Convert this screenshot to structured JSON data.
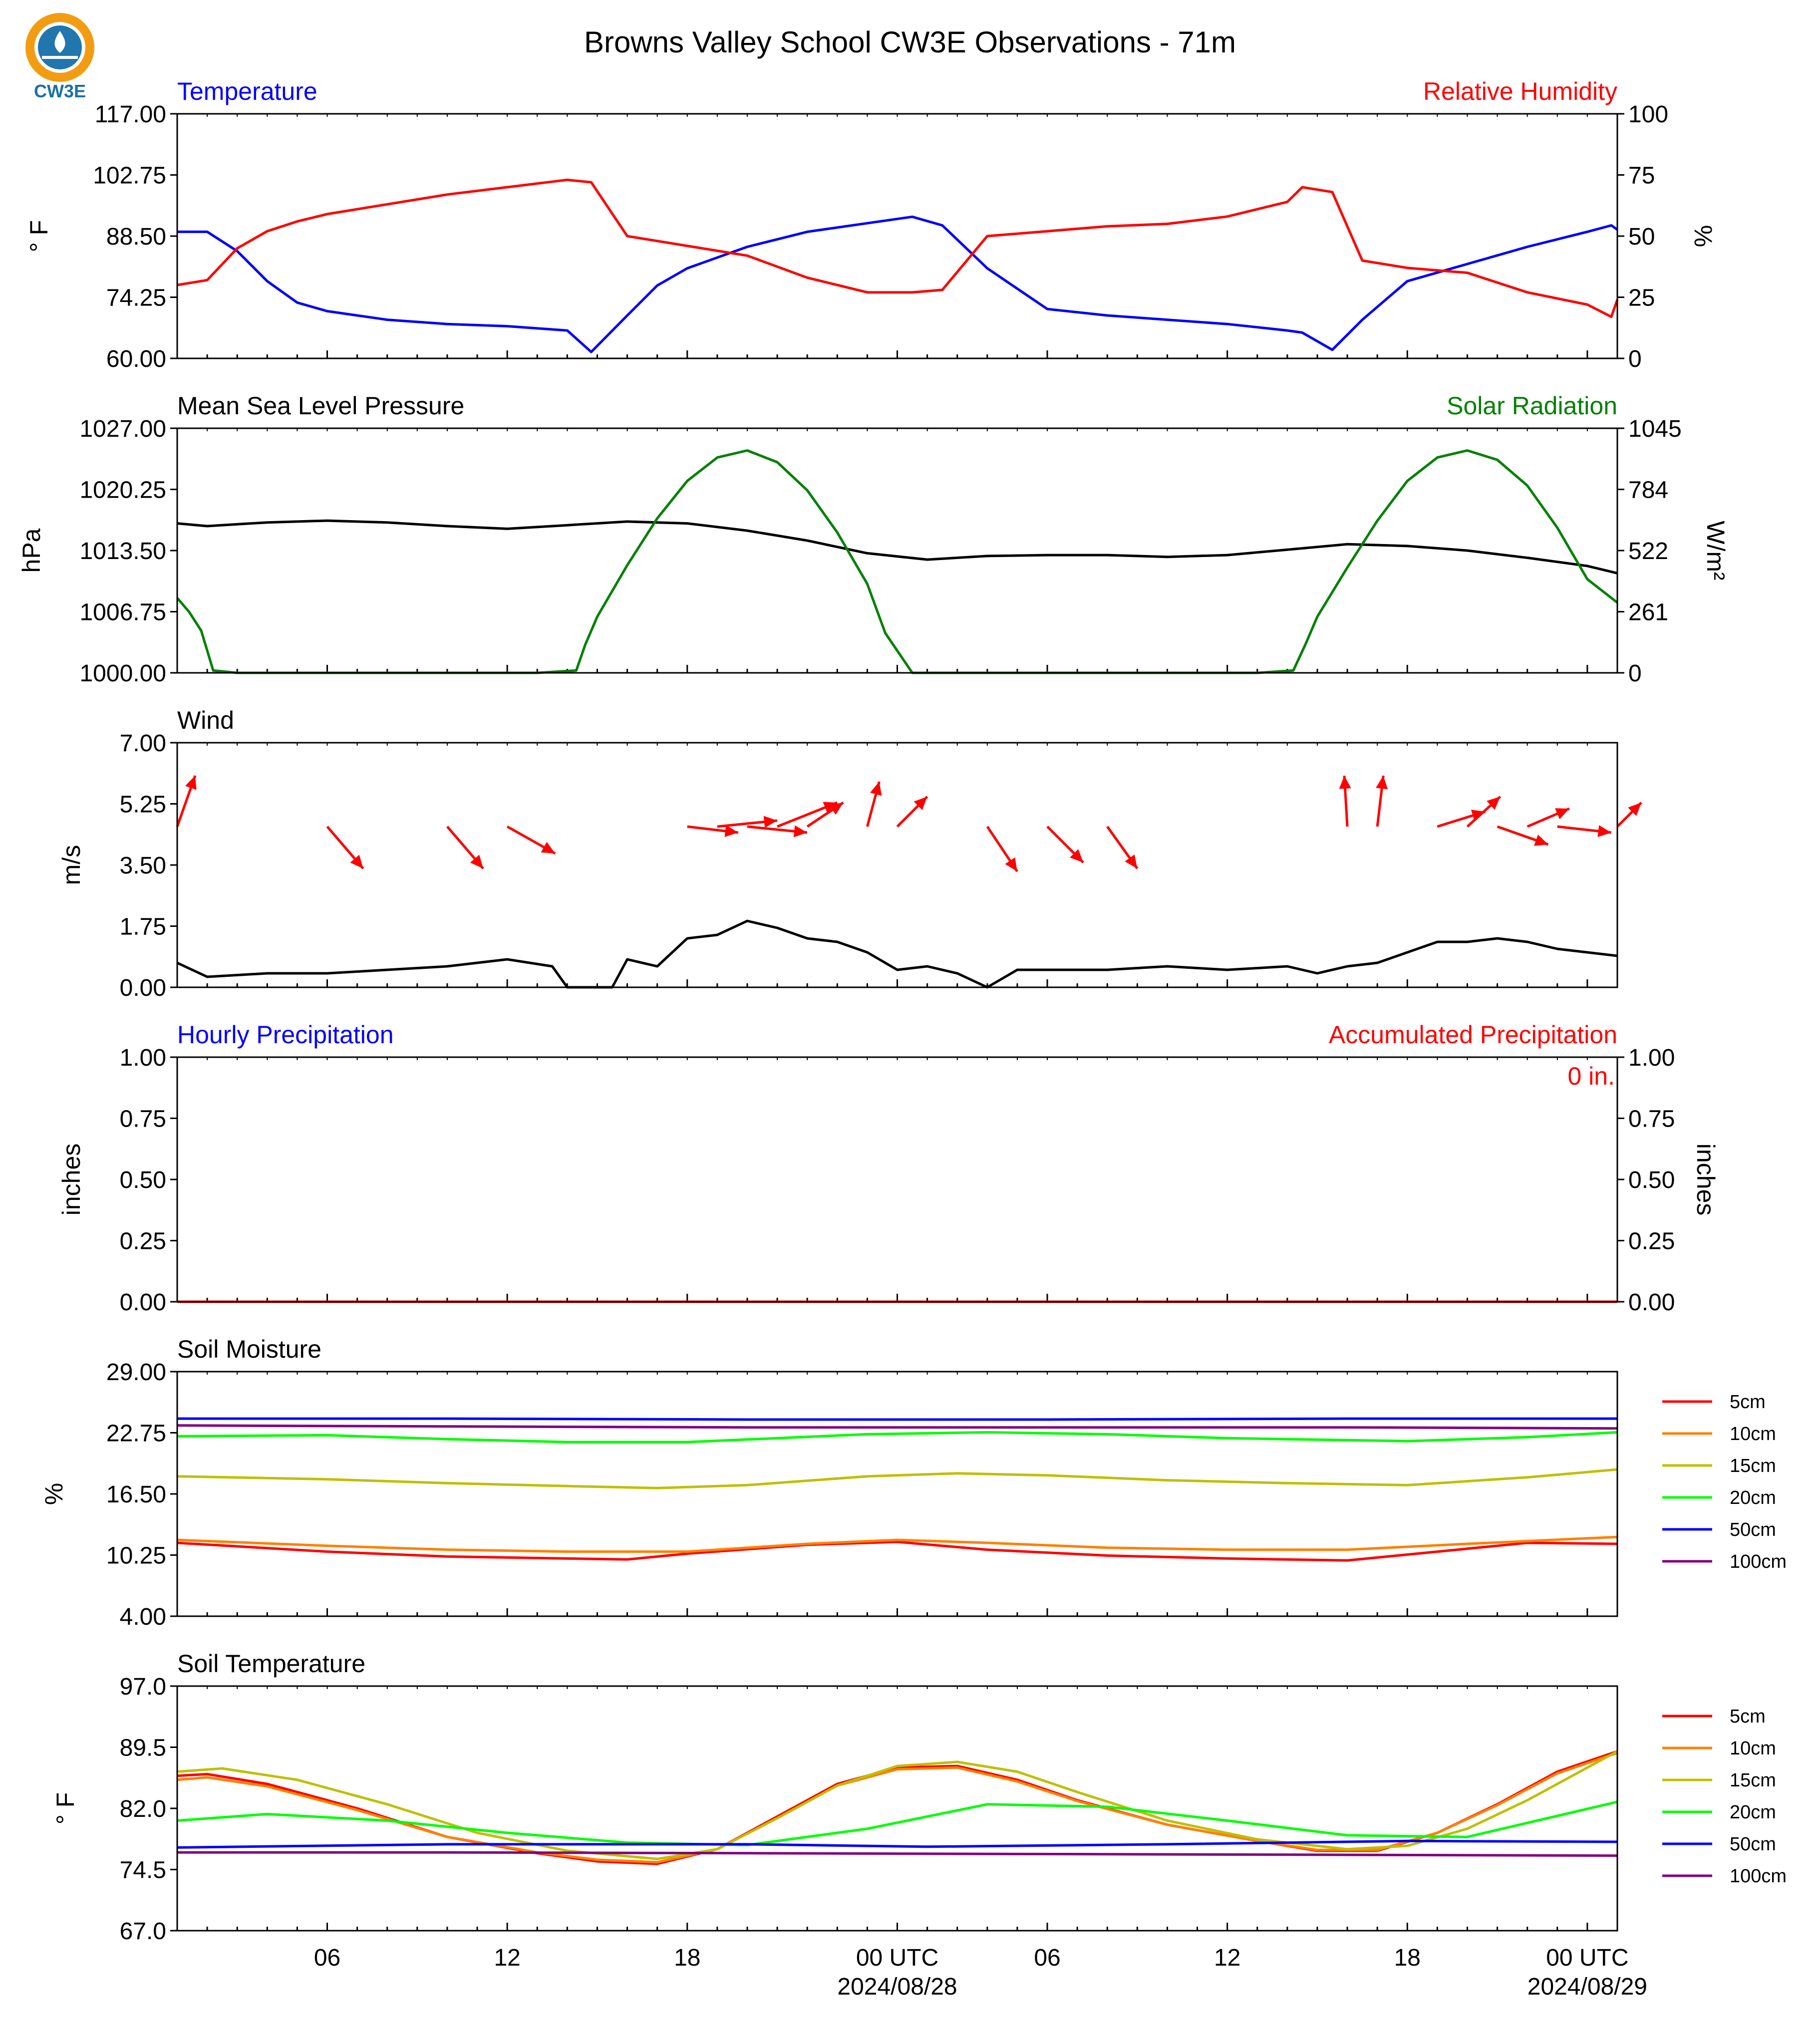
{
  "figure_title": "Browns Valley School CW3E Observations - 71m",
  "logo": {
    "text": "CW3E",
    "colors": {
      "ring": "#f39c12",
      "water": "#2176ae"
    }
  },
  "time_axis": {
    "ticks": [
      "06",
      "12",
      "18",
      "00 UTC",
      "06",
      "12",
      "18",
      "00 UTC"
    ],
    "dates": [
      "2024/08/28",
      "2024/08/29"
    ],
    "range_hours": [
      1,
      49
    ]
  },
  "colors": {
    "temperature": "#0000ff",
    "humidity": "#ff0000",
    "pressure": "#000000",
    "solar": "#008000",
    "wind": "#000000",
    "wind_arrows": "#ff0000",
    "hourly_precip": "#0000ff",
    "accum_precip": "#ff0000",
    "depths": {
      "5cm": "#ff0000",
      "10cm": "#ff8000",
      "15cm": "#bfbf00",
      "20cm": "#00ff00",
      "50cm": "#0000ff",
      "100cm": "#800080"
    }
  },
  "chart_data": [
    {
      "type": "line",
      "title_left": "Temperature",
      "title_right": "Relative Humidity",
      "ylabel_left": "° F",
      "ylabel_right": "%",
      "ylim_left": [
        60,
        117
      ],
      "ylim_right": [
        0,
        100
      ],
      "yticks_left": [
        "117.00",
        "102.75",
        "88.50",
        "74.25",
        "60.00"
      ],
      "yticks_right": [
        "100",
        "75",
        "50",
        "25",
        "0"
      ],
      "series": [
        {
          "name": "Temperature",
          "axis": "left",
          "x": [
            1,
            2,
            3,
            4,
            5,
            6,
            8,
            10,
            12,
            14,
            14.8,
            16,
            17,
            18,
            20,
            22,
            24,
            25.5,
            26.5,
            28,
            30,
            32,
            34,
            36,
            38,
            38.5,
            39.5,
            40.5,
            42,
            44,
            46,
            48,
            48.8,
            49
          ],
          "y": [
            89.5,
            89.5,
            85,
            78,
            73,
            71,
            69,
            68,
            67.5,
            66.5,
            61.5,
            70,
            77,
            81,
            86,
            89.5,
            91.5,
            93,
            91,
            81,
            71.5,
            70,
            69,
            68,
            66.5,
            66,
            62,
            69,
            78,
            82,
            86,
            89.5,
            91,
            90
          ]
        },
        {
          "name": "Relative Humidity",
          "axis": "right",
          "x": [
            1,
            2,
            3,
            4,
            5,
            6,
            8,
            10,
            12,
            14,
            14.8,
            16,
            17,
            18,
            20,
            22,
            24,
            25.5,
            26.5,
            28,
            30,
            32,
            34,
            36,
            38,
            38.5,
            39.5,
            40.5,
            42,
            44,
            46,
            48,
            48.8,
            49
          ],
          "y": [
            30,
            32,
            45,
            52,
            56,
            59,
            63,
            67,
            70,
            73,
            72,
            50,
            48,
            46,
            42,
            33,
            27,
            27,
            28,
            50,
            52,
            54,
            55,
            58,
            64,
            70,
            68,
            40,
            37,
            35,
            27,
            22,
            17,
            24
          ]
        }
      ]
    },
    {
      "type": "line",
      "title_left": "Mean Sea Level Pressure",
      "title_right": "Solar Radiation",
      "ylabel_left": "hPa",
      "ylabel_right": "W/m²",
      "ylim_left": [
        1000,
        1027
      ],
      "ylim_right": [
        0,
        1045
      ],
      "yticks_left": [
        "1027.00",
        "1020.25",
        "1013.50",
        "1006.75",
        "1000.00"
      ],
      "yticks_right": [
        "1045",
        "784",
        "522",
        "261",
        "0"
      ],
      "series": [
        {
          "name": "Mean Sea Level Pressure",
          "axis": "left",
          "x": [
            1,
            2,
            4,
            6,
            8,
            10,
            12,
            14,
            16,
            18,
            20,
            22,
            24,
            26,
            28,
            30,
            32,
            34,
            36,
            38,
            40,
            42,
            44,
            46,
            48,
            49
          ],
          "y": [
            1016.5,
            1016.2,
            1016.6,
            1016.8,
            1016.6,
            1016.2,
            1015.9,
            1016.3,
            1016.7,
            1016.5,
            1015.7,
            1014.6,
            1013.2,
            1012.5,
            1012.9,
            1013.0,
            1013.0,
            1012.8,
            1013.0,
            1013.6,
            1014.2,
            1014.0,
            1013.5,
            1012.7,
            1011.8,
            1011.0
          ]
        },
        {
          "name": "Solar Radiation",
          "axis": "right",
          "x": [
            1,
            1.4,
            1.8,
            2.2,
            3,
            6,
            10,
            13,
            14.3,
            14.6,
            15,
            16,
            17,
            18,
            19,
            20,
            21,
            22,
            23,
            24,
            24.6,
            25.5,
            26,
            27,
            32,
            37,
            38.2,
            38.6,
            39,
            40,
            41,
            42,
            43,
            44,
            45,
            46,
            47,
            48,
            49
          ],
          "y": [
            320,
            260,
            180,
            10,
            0,
            0,
            0,
            0,
            10,
            120,
            240,
            460,
            660,
            820,
            920,
            950,
            900,
            780,
            600,
            380,
            170,
            0,
            0,
            0,
            0,
            0,
            10,
            120,
            240,
            450,
            650,
            820,
            920,
            950,
            910,
            800,
            620,
            400,
            300
          ]
        }
      ]
    },
    {
      "type": "line",
      "title_left": "Wind",
      "ylabel_left": "m/s",
      "ylim_left": [
        0,
        7
      ],
      "yticks_left": [
        "7.00",
        "5.25",
        "3.50",
        "1.75",
        "0.00"
      ],
      "series": [
        {
          "name": "Wind",
          "axis": "left",
          "x": [
            1,
            2,
            4,
            6,
            8,
            10,
            12,
            13.5,
            14,
            15.5,
            16,
            17,
            17.5,
            18,
            19,
            20,
            21,
            22,
            23,
            24,
            25,
            26,
            27,
            28,
            29,
            30,
            32,
            34,
            36,
            38,
            39,
            40,
            41,
            42,
            43,
            44,
            45,
            46,
            47,
            48,
            49
          ],
          "y": [
            0.7,
            0.3,
            0.4,
            0.4,
            0.5,
            0.6,
            0.8,
            0.6,
            0.0,
            0.0,
            0.8,
            0.6,
            1.0,
            1.4,
            1.5,
            1.9,
            1.7,
            1.4,
            1.3,
            1.0,
            0.5,
            0.6,
            0.4,
            0.0,
            0.5,
            0.5,
            0.5,
            0.6,
            0.5,
            0.6,
            0.4,
            0.6,
            0.7,
            1.0,
            1.3,
            1.3,
            1.4,
            1.3,
            1.1,
            1.0,
            0.9
          ]
        }
      ],
      "arrows": {
        "x_hours": [
          1,
          6,
          10,
          12,
          18,
          19,
          20,
          21,
          22,
          24,
          25,
          28,
          30,
          32,
          40,
          41,
          43,
          44,
          45,
          46,
          47,
          49
        ],
        "u": [
          0.6,
          1.2,
          1.2,
          1.6,
          1.7,
          2.0,
          2.0,
          2.0,
          1.2,
          0.4,
          1.0,
          1.0,
          1.2,
          1.0,
          -0.1,
          0.2,
          1.6,
          1.1,
          1.7,
          1.4,
          1.8,
          0.8
        ],
        "v": [
          1.7,
          -1.4,
          -1.4,
          -0.9,
          -0.2,
          0.2,
          -0.2,
          0.8,
          0.8,
          1.5,
          1.0,
          -1.5,
          -1.2,
          -1.4,
          1.7,
          1.7,
          0.5,
          1.0,
          -0.6,
          0.6,
          -0.2,
          0.8
        ]
      }
    },
    {
      "type": "line",
      "title_left": "Hourly Precipitation",
      "title_right": "Accumulated Precipitation",
      "annotation": "0 in.",
      "ylabel_left": "inches",
      "ylabel_right": "inches",
      "ylim_left": [
        0,
        1
      ],
      "ylim_right": [
        0,
        1
      ],
      "yticks_left": [
        "1.00",
        "0.75",
        "0.50",
        "0.25",
        "0.00"
      ],
      "yticks_right": [
        "1.00",
        "0.75",
        "0.50",
        "0.25",
        "0.00"
      ],
      "series": [
        {
          "name": "Hourly Precipitation",
          "axis": "left",
          "x": [
            1,
            49
          ],
          "y": [
            0,
            0
          ]
        },
        {
          "name": "Accumulated Precipitation",
          "axis": "right",
          "x": [
            1,
            49
          ],
          "y": [
            0,
            0
          ]
        }
      ]
    },
    {
      "type": "line",
      "title_left": "Soil Moisture",
      "ylabel_left": "%",
      "ylim_left": [
        4,
        29
      ],
      "yticks_left": [
        "29.00",
        "22.75",
        "16.50",
        "10.25",
        "4.00"
      ],
      "series": [
        {
          "name": "5cm",
          "x": [
            1,
            6,
            10,
            14,
            16,
            18,
            22,
            25,
            28,
            32,
            36,
            40,
            42,
            46,
            49
          ],
          "y": [
            11.5,
            10.6,
            10.1,
            9.9,
            9.8,
            10.4,
            11.3,
            11.6,
            10.8,
            10.2,
            9.9,
            9.7,
            10.3,
            11.5,
            11.4
          ]
        },
        {
          "name": "10cm",
          "x": [
            1,
            6,
            10,
            14,
            18,
            22,
            25,
            28,
            32,
            36,
            40,
            44,
            49
          ],
          "y": [
            11.8,
            11.2,
            10.8,
            10.6,
            10.6,
            11.4,
            11.8,
            11.5,
            11.0,
            10.8,
            10.8,
            11.4,
            12.1
          ]
        },
        {
          "name": "15cm",
          "x": [
            1,
            6,
            10,
            14,
            17,
            20,
            24,
            27,
            30,
            34,
            38,
            42,
            46,
            49
          ],
          "y": [
            18.3,
            18.0,
            17.6,
            17.3,
            17.1,
            17.4,
            18.3,
            18.6,
            18.4,
            17.9,
            17.6,
            17.4,
            18.2,
            19.0
          ]
        },
        {
          "name": "20cm",
          "x": [
            1,
            6,
            10,
            14,
            18,
            24,
            28,
            32,
            36,
            42,
            46,
            49
          ],
          "y": [
            22.4,
            22.5,
            22.1,
            21.8,
            21.8,
            22.6,
            22.8,
            22.6,
            22.2,
            21.9,
            22.3,
            22.8
          ]
        },
        {
          "name": "50cm",
          "x": [
            1,
            10,
            20,
            30,
            40,
            49
          ],
          "y": [
            24.2,
            24.2,
            24.1,
            24.1,
            24.2,
            24.2
          ]
        },
        {
          "name": "100cm",
          "x": [
            1,
            10,
            20,
            30,
            40,
            49
          ],
          "y": [
            23.5,
            23.4,
            23.3,
            23.3,
            23.3,
            23.2
          ]
        }
      ]
    },
    {
      "type": "line",
      "title_left": "Soil Temperature",
      "ylabel_left": "° F",
      "ylim_left": [
        67,
        97
      ],
      "yticks_left": [
        "97.0",
        "89.5",
        "82.0",
        "74.5",
        "67.0"
      ],
      "series": [
        {
          "name": "5cm",
          "x": [
            1,
            2,
            4,
            7,
            10,
            13,
            15,
            17,
            19,
            21,
            23,
            25,
            27,
            29,
            31,
            34,
            37,
            39,
            41,
            43,
            45,
            47,
            49
          ],
          "y": [
            86,
            86.2,
            85,
            82,
            78.5,
            76.5,
            75.5,
            75.2,
            77,
            81,
            85,
            87,
            87.2,
            85.5,
            83,
            80,
            78,
            76.8,
            76.8,
            79,
            82.5,
            86.5,
            89
          ]
        },
        {
          "name": "10cm",
          "x": [
            1,
            2,
            4,
            7,
            10,
            13,
            15,
            17,
            19,
            21,
            23,
            25,
            27,
            29,
            31,
            34,
            37,
            39,
            41,
            43,
            45,
            47,
            49
          ],
          "y": [
            85.5,
            85.8,
            84.7,
            81.8,
            78.5,
            76.6,
            75.7,
            75.4,
            77,
            80.8,
            84.8,
            86.8,
            87,
            85.3,
            82.9,
            80,
            78,
            76.9,
            76.9,
            79,
            82.4,
            86.3,
            88.8
          ]
        },
        {
          "name": "15cm",
          "x": [
            1,
            2.5,
            5,
            8,
            11,
            14,
            17,
            19,
            21,
            23,
            25,
            27,
            29,
            31,
            34,
            37,
            40,
            42,
            44,
            46,
            48,
            49
          ],
          "y": [
            86.5,
            86.9,
            85.5,
            82.5,
            79,
            76.8,
            75.8,
            77,
            80.8,
            84.8,
            87.2,
            87.7,
            86.5,
            84,
            80.5,
            78.2,
            77,
            77.4,
            79.5,
            83,
            87,
            89
          ]
        },
        {
          "name": "20cm",
          "x": [
            1,
            4,
            8,
            12,
            16,
            20,
            24,
            28,
            32,
            36,
            40,
            44,
            49
          ],
          "y": [
            80.5,
            81.3,
            80.5,
            79,
            77.8,
            77.5,
            79.5,
            82.5,
            82.2,
            80.5,
            78.7,
            78.5,
            82.8
          ]
        },
        {
          "name": "50cm",
          "x": [
            1,
            10,
            20,
            26,
            34,
            42,
            49
          ],
          "y": [
            77.2,
            77.6,
            77.6,
            77.3,
            77.6,
            78.0,
            77.9
          ]
        },
        {
          "name": "100cm",
          "x": [
            1,
            10,
            20,
            30,
            40,
            49
          ],
          "y": [
            76.6,
            76.6,
            76.5,
            76.4,
            76.3,
            76.2
          ]
        }
      ]
    }
  ],
  "legend": {
    "soil_moisture": [
      "5cm",
      "10cm",
      "15cm",
      "20cm",
      "50cm",
      "100cm"
    ],
    "soil_temperature": [
      "5cm",
      "10cm",
      "15cm",
      "20cm",
      "50cm",
      "100cm"
    ]
  }
}
